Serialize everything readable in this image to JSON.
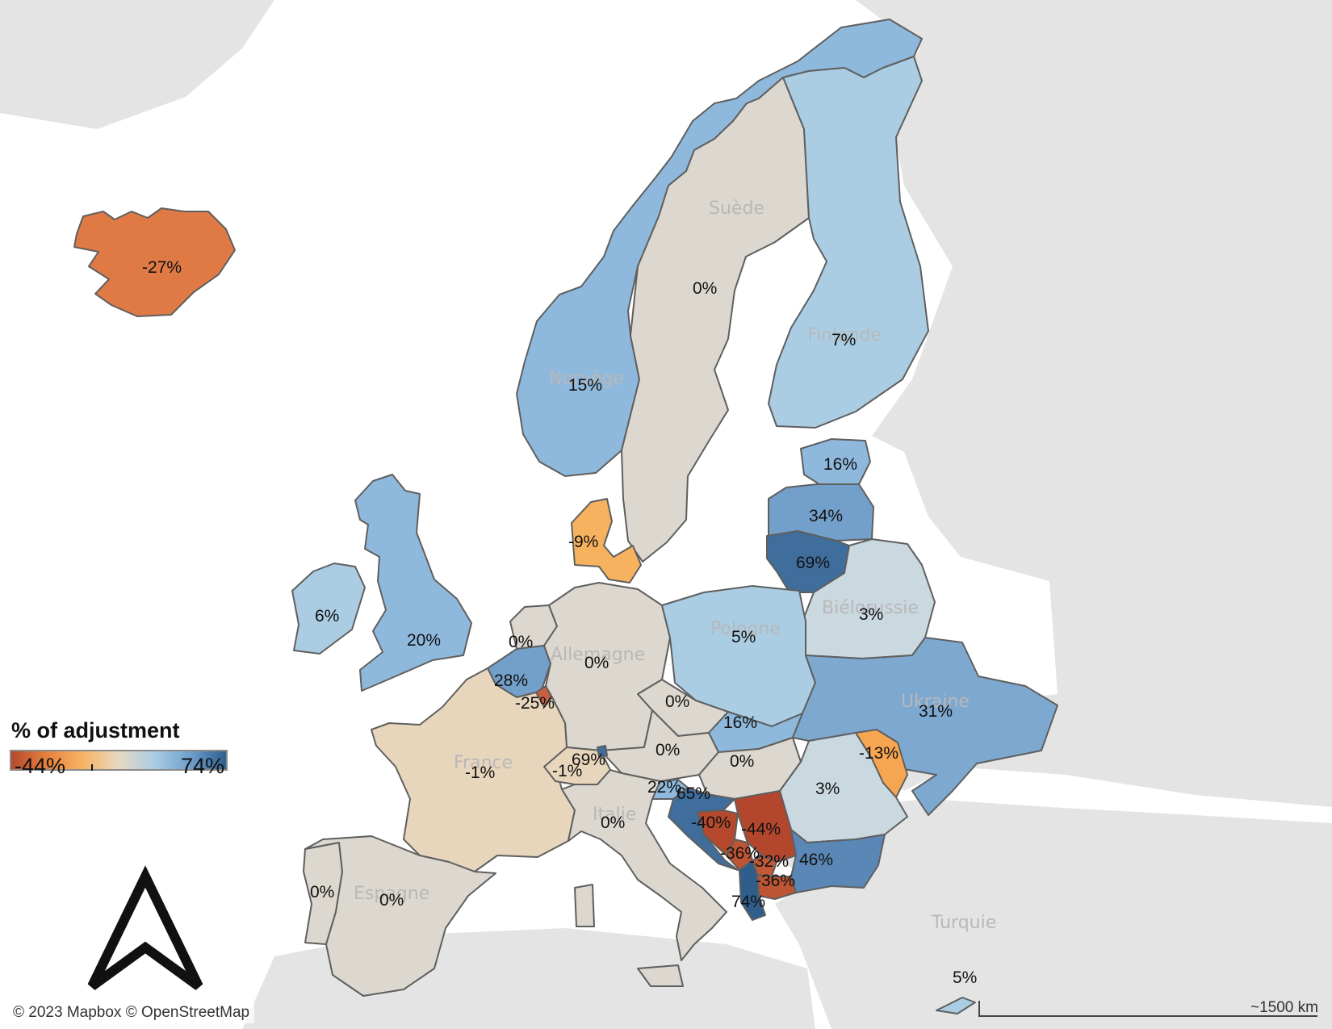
{
  "legend": {
    "title": "% of adjustment",
    "min_label": "-44%",
    "max_label": "74%",
    "colors": [
      "#b5492e",
      "#e5813f",
      "#f7b463",
      "#e7d8c2",
      "#aacde3",
      "#6e9fcc",
      "#2f5e8c"
    ],
    "min": -44,
    "max": 74
  },
  "credits": "© 2023 Mapbox © OpenStreetMap",
  "scale_label": "~1500 km",
  "colors": {
    "sea": "#ffffff",
    "land_background": "#e4e4e4",
    "border": "#5f5f5f",
    "neutral": "#dcd8cf"
  },
  "basemap_labels": [
    {
      "name": "Suède"
    },
    {
      "name": "Finlande"
    },
    {
      "name": "Norvège"
    },
    {
      "name": "Biélorussie"
    },
    {
      "name": "Pologne"
    },
    {
      "name": "Allemagne"
    },
    {
      "name": "Ukraine"
    },
    {
      "name": "France"
    },
    {
      "name": "Espagne"
    },
    {
      "name": "Italie"
    },
    {
      "name": "Turquie"
    }
  ],
  "countries": [
    {
      "id": "iceland",
      "value_label": "-27%",
      "value": -27,
      "color": "#e07a45"
    },
    {
      "id": "norway",
      "value_label": "15%",
      "value": 15,
      "color": "#8fb9dc"
    },
    {
      "id": "sweden",
      "value_label": "0%",
      "value": 0,
      "color": "#dcd8cf"
    },
    {
      "id": "finland",
      "value_label": "7%",
      "value": 7,
      "color": "#aacde3"
    },
    {
      "id": "estonia",
      "value_label": "16%",
      "value": 16,
      "color": "#8fb9dc"
    },
    {
      "id": "latvia",
      "value_label": "34%",
      "value": 34,
      "color": "#739fcb"
    },
    {
      "id": "lithuania",
      "value_label": "69%",
      "value": 69,
      "color": "#3f6e9c"
    },
    {
      "id": "belarus",
      "value_label": "3%",
      "value": 3,
      "color": "#cad8e0"
    },
    {
      "id": "denmark",
      "value_label": "-9%",
      "value": -9,
      "color": "#f6b25f"
    },
    {
      "id": "ireland",
      "value_label": "6%",
      "value": 6,
      "color": "#aacde3"
    },
    {
      "id": "uk",
      "value_label": "20%",
      "value": 20,
      "color": "#8fb9dc"
    },
    {
      "id": "netherlands",
      "value_label": "0%",
      "value": 0,
      "color": "#dcd8cf"
    },
    {
      "id": "belgium",
      "value_label": "28%",
      "value": 28,
      "color": "#739fcb"
    },
    {
      "id": "luxembourg",
      "value_label": "-25%",
      "value": -25,
      "color": "#c86040"
    },
    {
      "id": "germany",
      "value_label": "0%",
      "value": 0,
      "color": "#dcd8cf"
    },
    {
      "id": "poland",
      "value_label": "5%",
      "value": 5,
      "color": "#aacde3"
    },
    {
      "id": "czechia",
      "value_label": "0%",
      "value": 0,
      "color": "#dcd8cf"
    },
    {
      "id": "slovakia",
      "value_label": "16%",
      "value": 16,
      "color": "#8fb9dc"
    },
    {
      "id": "ukraine",
      "value_label": "31%",
      "value": 31,
      "color": "#7da9d1"
    },
    {
      "id": "moldova",
      "value_label": "-13%",
      "value": -13,
      "color": "#f6a650"
    },
    {
      "id": "austria",
      "value_label": "0%",
      "value": 0,
      "color": "#dcd8cf"
    },
    {
      "id": "hungary",
      "value_label": "0%",
      "value": 0,
      "color": "#dcd8cf"
    },
    {
      "id": "romania",
      "value_label": "3%",
      "value": 3,
      "color": "#cad8e0"
    },
    {
      "id": "france",
      "value_label": "-1%",
      "value": -1,
      "color": "#e8d6bc"
    },
    {
      "id": "switzerland",
      "value_label": "-1%",
      "value": -1,
      "color": "#e8d6bc"
    },
    {
      "id": "liechtenstein",
      "value_label": "69%",
      "value": 69,
      "color": "#3f6e9c"
    },
    {
      "id": "slovenia",
      "value_label": "22%",
      "value": 22,
      "color": "#8fb9dc"
    },
    {
      "id": "croatia",
      "value_label": "65%",
      "value": 65,
      "color": "#3f6e9c"
    },
    {
      "id": "bosnia",
      "value_label": "-40%",
      "value": -40,
      "color": "#b5492e"
    },
    {
      "id": "serbia",
      "value_label": "-44%",
      "value": -44,
      "color": "#b3472d"
    },
    {
      "id": "montenegro",
      "value_label": "-36%",
      "value": -36,
      "color": "#bd5535"
    },
    {
      "id": "kosovo",
      "value_label": "-32%",
      "value": -32,
      "color": "#c25a38"
    },
    {
      "id": "north_macedonia",
      "value_label": "-36%",
      "value": -36,
      "color": "#bd5535"
    },
    {
      "id": "albania",
      "value_label": "74%",
      "value": 74,
      "color": "#2f5e8c"
    },
    {
      "id": "bulgaria",
      "value_label": "46%",
      "value": 46,
      "color": "#5a87b6"
    },
    {
      "id": "italy",
      "value_label": "0%",
      "value": 0,
      "color": "#dcd8cf"
    },
    {
      "id": "portugal",
      "value_label": "0%",
      "value": 0,
      "color": "#dcd8cf"
    },
    {
      "id": "spain",
      "value_label": "0%",
      "value": 0,
      "color": "#dcd8cf"
    },
    {
      "id": "cyprus",
      "value_label": "5%",
      "value": 5,
      "color": "#aacde3"
    }
  ]
}
